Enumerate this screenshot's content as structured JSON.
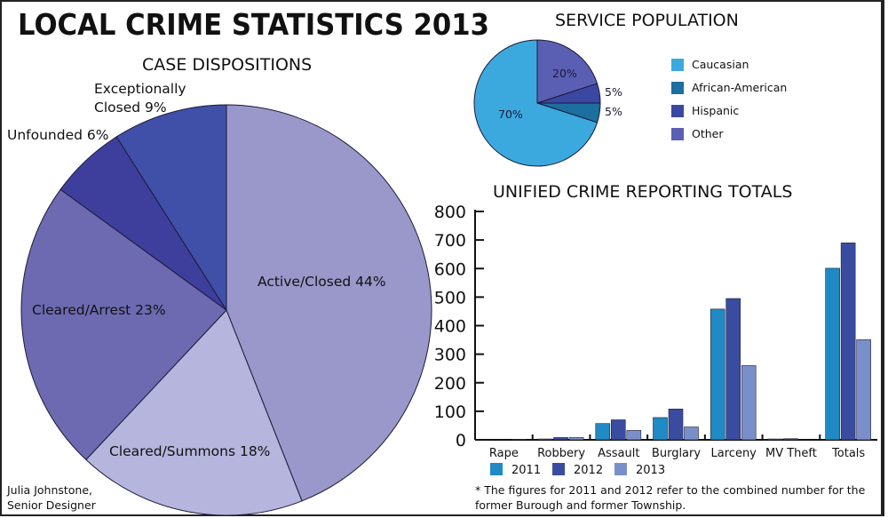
{
  "title": "LOCAL CRIME STATISTICS 2013",
  "credit": {
    "line1": "Julia Johnstone,",
    "line2": "Senior Designer"
  },
  "footnote": {
    "line1": "* The figures for 2011 and 2012 refer to the combined number for the",
    "line2": "former Burough and former Township."
  },
  "chart_data": [
    {
      "type": "pie",
      "title": "CASE DISPOSITIONS",
      "slices": [
        {
          "label": "Active/Closed 44%",
          "value": 44,
          "color": "#9a98ca"
        },
        {
          "label": "Cleared/Summons 18%",
          "value": 18,
          "color": "#b6b5dd"
        },
        {
          "label": "Cleared/Arrest 23%",
          "value": 23,
          "color": "#6d6ab2"
        },
        {
          "label": "Unfounded 6%",
          "value": 6,
          "color": "#3e3f9c"
        },
        {
          "label": "Exceptionally Closed 9%",
          "label_lines": [
            "Exceptionally",
            "Closed 9%"
          ],
          "value": 9,
          "color": "#4050a8"
        }
      ]
    },
    {
      "type": "pie",
      "title": "SERVICE POPULATION",
      "legend_position": "right",
      "slices": [
        {
          "label": "Other",
          "value": 20,
          "data_label": "20%",
          "color": "#5b5fb3"
        },
        {
          "label": "Hispanic",
          "value": 5,
          "data_label": "5%",
          "color": "#3a48a2"
        },
        {
          "label": "African-American",
          "value": 5,
          "data_label": "5%",
          "color": "#1c6f9e"
        },
        {
          "label": "Caucasian",
          "value": 70,
          "data_label": "70%",
          "color": "#3ca9de"
        }
      ],
      "legend_order": [
        "Caucasian",
        "African-American",
        "Hispanic",
        "Other"
      ]
    },
    {
      "type": "bar",
      "title": "UNIFIED CRIME REPORTING TOTALS",
      "categories": [
        "Rape",
        "Robbery",
        "Assault",
        "Burglary",
        "Larceny",
        "MV Theft",
        "Totals"
      ],
      "series": [
        {
          "name": "2011",
          "values": [
            0,
            3,
            57,
            78,
            458,
            3,
            601
          ],
          "color": "#1f8ac4"
        },
        {
          "name": "2012",
          "values": [
            0,
            8,
            70,
            108,
            495,
            4,
            690
          ],
          "color": "#3a4ca0"
        },
        {
          "name": "2013",
          "values": [
            2,
            8,
            33,
            45,
            260,
            0,
            351
          ],
          "color": "#7a8fca"
        }
      ],
      "ylim": [
        0,
        800
      ],
      "yticks": [
        0,
        100,
        200,
        300,
        400,
        500,
        600,
        700,
        800
      ],
      "legend_position": "bottom",
      "grid": false
    }
  ]
}
